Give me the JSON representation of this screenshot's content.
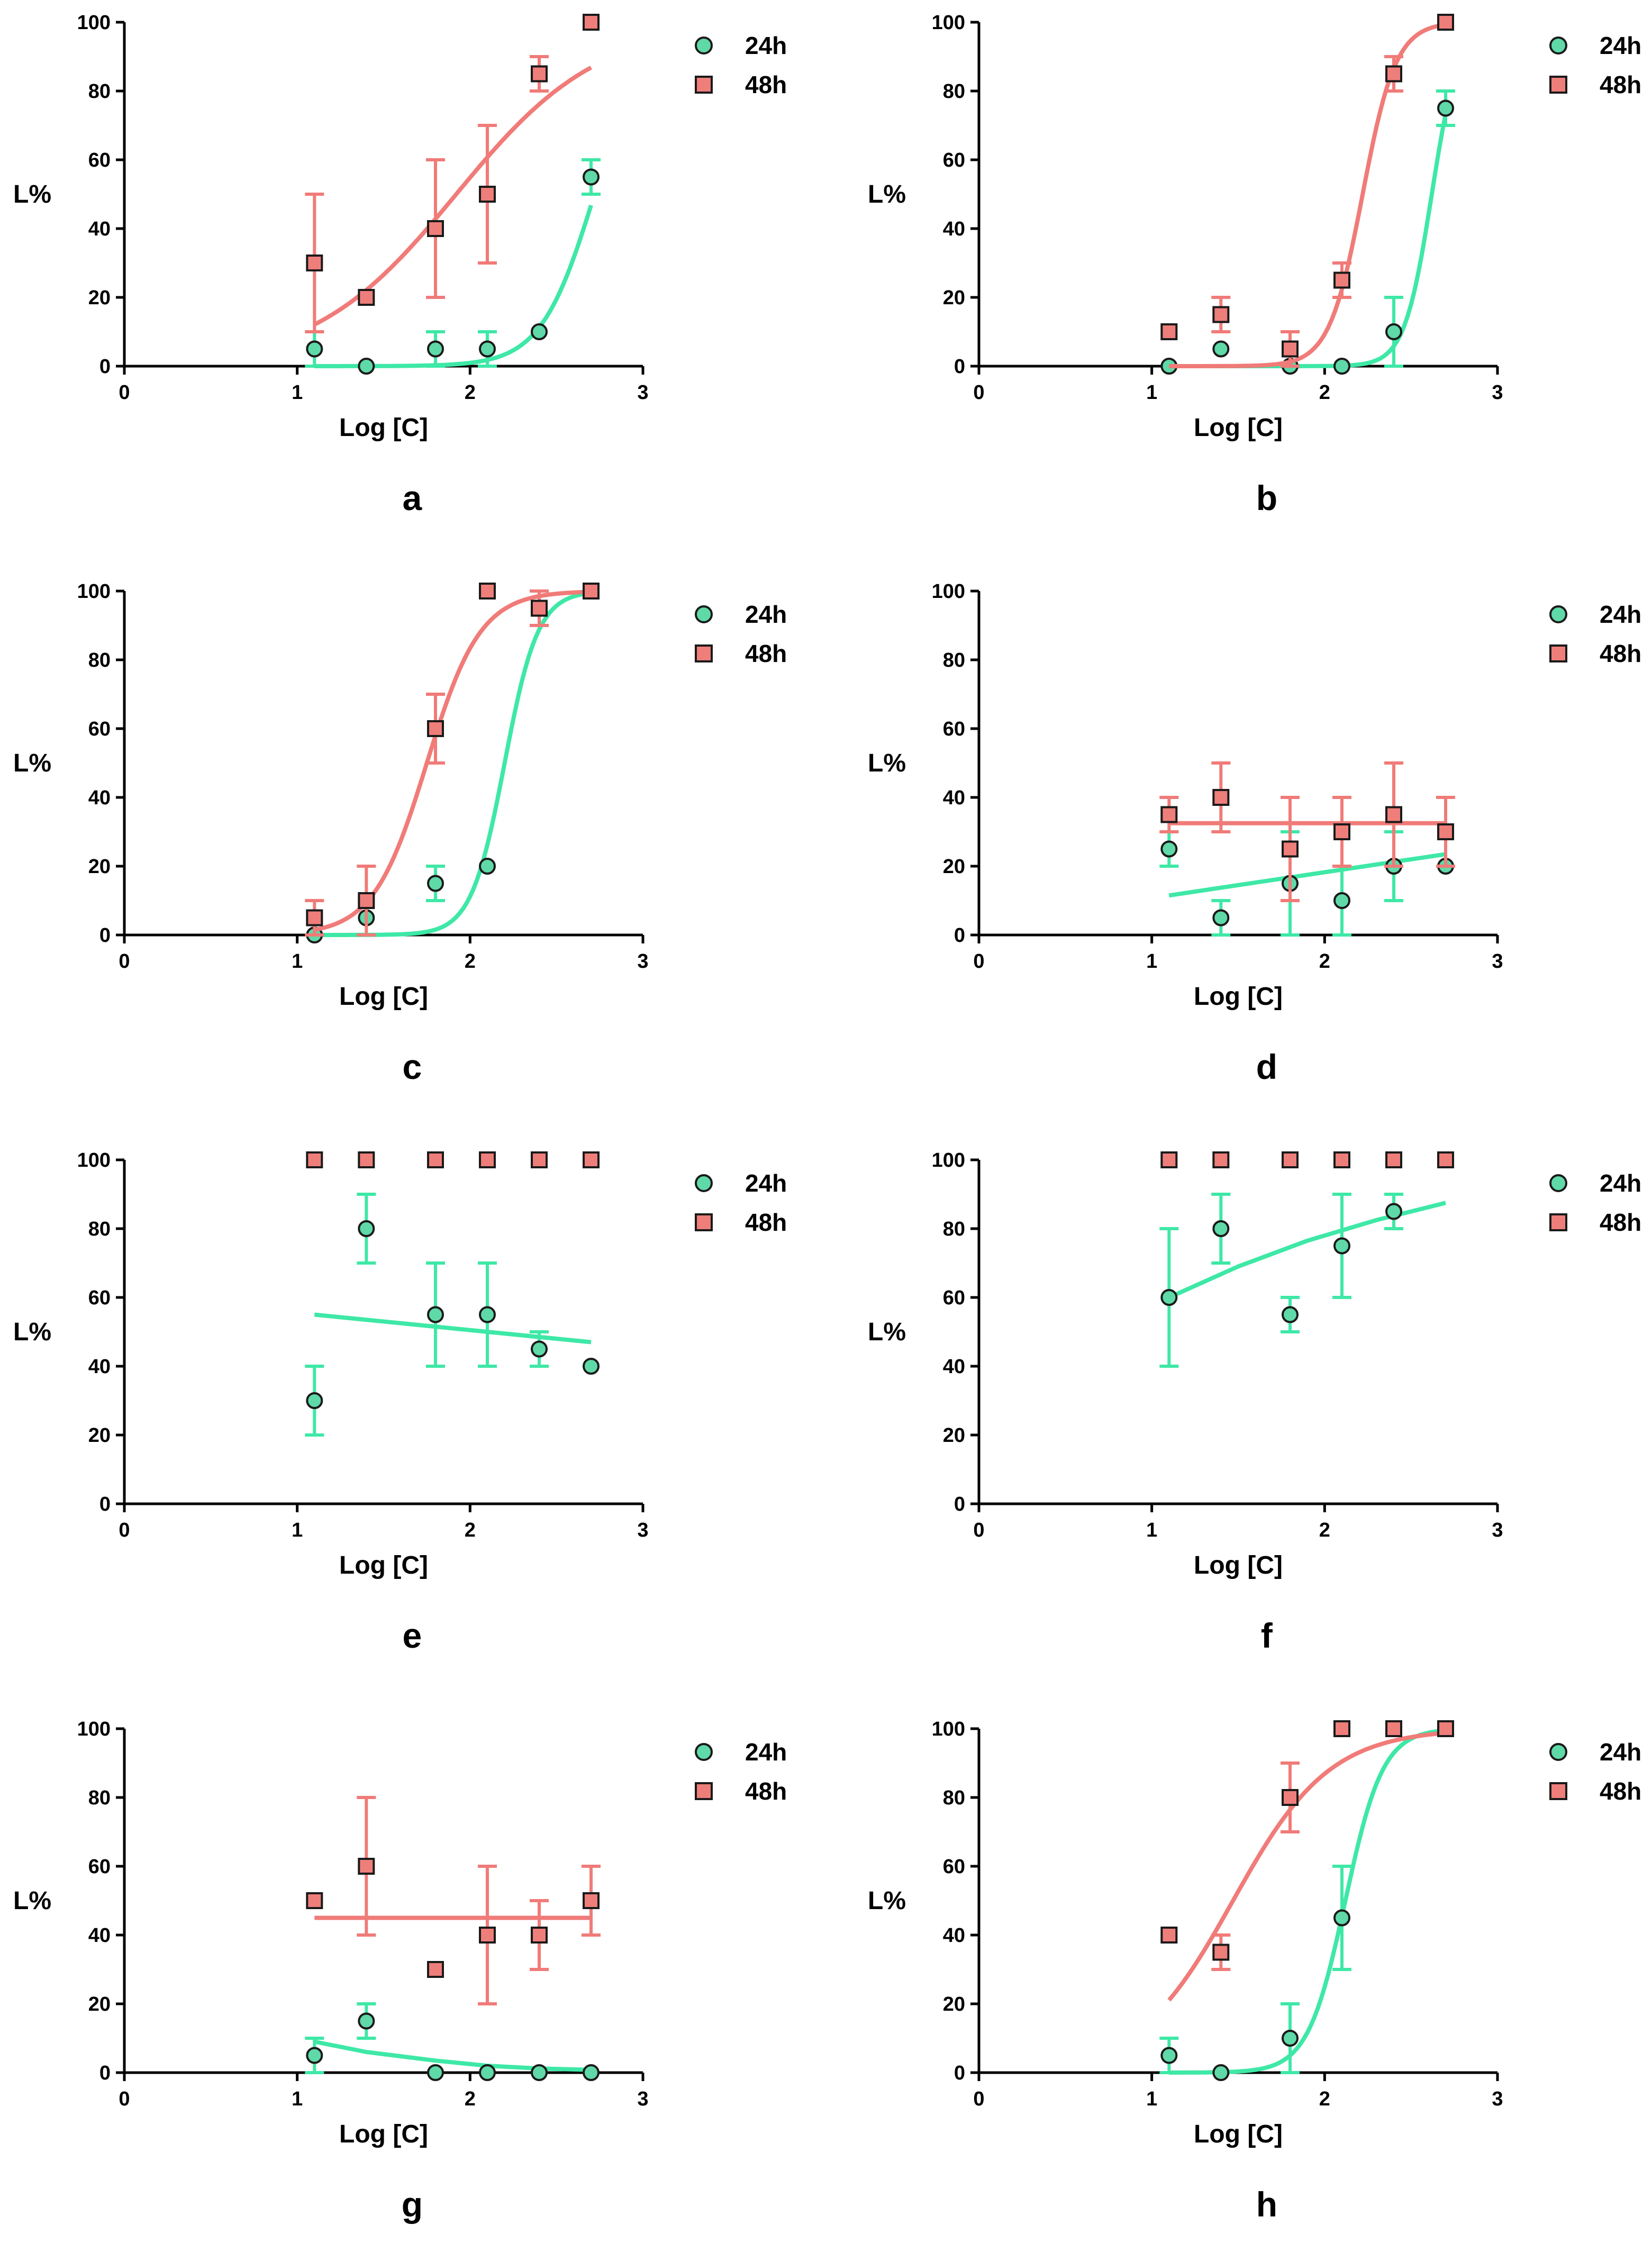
{
  "colors": {
    "s24": "#3ee8a6",
    "s48": "#f07b78",
    "marker_s24": "#5fd9a8",
    "marker_s48": "#ee7e7a",
    "axis": "#000000"
  },
  "chart_data": [
    {
      "panel": "a",
      "type": "scatter",
      "xlabel": "Log [C]",
      "ylabel": "L%",
      "xlim": [
        0,
        3
      ],
      "ylim": [
        0,
        100
      ],
      "xticks": [
        "0",
        "1",
        "2",
        "3"
      ],
      "yticks": [
        "0",
        "20",
        "40",
        "60",
        "80",
        "100"
      ],
      "legend": [
        "24h",
        "48h"
      ],
      "series": [
        {
          "name": "24h",
          "x": [
            1.1,
            1.4,
            1.8,
            2.1,
            2.4,
            2.7
          ],
          "y": [
            5,
            0,
            5,
            5,
            10,
            55
          ],
          "err": [
            5,
            0,
            5,
            5,
            0,
            5
          ],
          "fit": {
            "kind": "sigmoid",
            "bottom": 0,
            "top": 100,
            "ec50": 2.72,
            "hill": 2.8
          }
        },
        {
          "name": "48h",
          "x": [
            1.1,
            1.4,
            1.8,
            2.1,
            2.4,
            2.7
          ],
          "y": [
            30,
            20,
            40,
            50,
            85,
            100
          ],
          "err": [
            20,
            0,
            20,
            20,
            5,
            0
          ],
          "fit": {
            "kind": "sigmoid",
            "bottom": 0,
            "top": 100,
            "ec50": 1.92,
            "hill": 1.05
          }
        }
      ]
    },
    {
      "panel": "b",
      "type": "scatter",
      "xlabel": "Log [C]",
      "ylabel": "L%",
      "xlim": [
        0,
        3
      ],
      "ylim": [
        0,
        100
      ],
      "xticks": [
        "0",
        "1",
        "2",
        "3"
      ],
      "yticks": [
        "0",
        "20",
        "40",
        "60",
        "80",
        "100"
      ],
      "legend": [
        "24h",
        "48h"
      ],
      "series": [
        {
          "name": "24h",
          "x": [
            1.1,
            1.4,
            1.8,
            2.1,
            2.4,
            2.7
          ],
          "y": [
            0,
            5,
            0,
            0,
            10,
            75
          ],
          "err": [
            0,
            0,
            0,
            0,
            10,
            5
          ],
          "fit": {
            "kind": "sigmoid",
            "bottom": 0,
            "top": 100,
            "ec50": 2.62,
            "hill": 5.5
          }
        },
        {
          "name": "48h",
          "x": [
            1.1,
            1.4,
            1.8,
            2.1,
            2.4,
            2.7
          ],
          "y": [
            10,
            15,
            5,
            25,
            85,
            100
          ],
          "err": [
            0,
            5,
            5,
            5,
            5,
            0
          ],
          "fit": {
            "kind": "sigmoid",
            "bottom": 0,
            "top": 100,
            "ec50": 2.22,
            "hill": 4.5
          }
        }
      ]
    },
    {
      "panel": "c",
      "type": "scatter",
      "xlabel": "Log [C]",
      "ylabel": "L%",
      "xlim": [
        0,
        3
      ],
      "ylim": [
        0,
        100
      ],
      "xticks": [
        "0",
        "1",
        "2",
        "3"
      ],
      "yticks": [
        "0",
        "20",
        "40",
        "60",
        "80",
        "100"
      ],
      "legend": [
        "24h",
        "48h"
      ],
      "series": [
        {
          "name": "24h",
          "x": [
            1.1,
            1.4,
            1.8,
            2.1,
            2.4,
            2.7
          ],
          "y": [
            0,
            5,
            15,
            20,
            95,
            100
          ],
          "err": [
            0,
            0,
            5,
            0,
            5,
            0
          ],
          "fit": {
            "kind": "sigmoid",
            "bottom": 0,
            "top": 100,
            "ec50": 2.2,
            "hill": 4.5
          }
        },
        {
          "name": "48h",
          "x": [
            1.1,
            1.4,
            1.8,
            2.1,
            2.4,
            2.7
          ],
          "y": [
            5,
            10,
            60,
            100,
            95,
            100
          ],
          "err": [
            5,
            10,
            10,
            0,
            5,
            0
          ],
          "fit": {
            "kind": "sigmoid",
            "bottom": 0,
            "top": 100,
            "ec50": 1.75,
            "hill": 2.8
          }
        }
      ]
    },
    {
      "panel": "d",
      "type": "scatter",
      "xlabel": "Log [C]",
      "ylabel": "L%",
      "xlim": [
        0,
        3
      ],
      "ylim": [
        0,
        100
      ],
      "xticks": [
        "0",
        "1",
        "2",
        "3"
      ],
      "yticks": [
        "0",
        "20",
        "40",
        "60",
        "80",
        "100"
      ],
      "legend": [
        "24h",
        "48h"
      ],
      "series": [
        {
          "name": "24h",
          "x": [
            1.1,
            1.4,
            1.8,
            2.1,
            2.4,
            2.7
          ],
          "y": [
            25,
            5,
            15,
            10,
            20,
            20
          ],
          "err": [
            5,
            5,
            15,
            10,
            10,
            0
          ],
          "fit": {
            "kind": "linear",
            "x0": 1.1,
            "y0": 11.5,
            "x1": 2.7,
            "y1": 23.5
          }
        },
        {
          "name": "48h",
          "x": [
            1.1,
            1.4,
            1.8,
            2.1,
            2.4,
            2.7
          ],
          "y": [
            35,
            40,
            25,
            30,
            35,
            30
          ],
          "err": [
            5,
            10,
            15,
            10,
            15,
            10
          ],
          "fit": {
            "kind": "linear",
            "x0": 1.1,
            "y0": 32.5,
            "x1": 2.7,
            "y1": 32.5
          }
        }
      ]
    },
    {
      "panel": "e",
      "type": "scatter",
      "xlabel": "Log [C]",
      "ylabel": "L%",
      "xlim": [
        0,
        3
      ],
      "ylim": [
        0,
        100
      ],
      "xticks": [
        "0",
        "1",
        "2",
        "3"
      ],
      "yticks": [
        "0",
        "20",
        "40",
        "60",
        "80",
        "100"
      ],
      "legend": [
        "24h",
        "48h"
      ],
      "series": [
        {
          "name": "24h",
          "x": [
            1.1,
            1.4,
            1.8,
            2.1,
            2.4,
            2.7
          ],
          "y": [
            30,
            80,
            55,
            55,
            45,
            40
          ],
          "err": [
            10,
            10,
            15,
            15,
            5,
            0
          ],
          "fit": {
            "kind": "linear",
            "x0": 1.1,
            "y0": 55,
            "x1": 2.7,
            "y1": 47
          }
        },
        {
          "name": "48h",
          "x": [
            1.1,
            1.4,
            1.8,
            2.1,
            2.4,
            2.7
          ],
          "y": [
            100,
            100,
            100,
            100,
            100,
            100
          ],
          "err": [
            0,
            0,
            0,
            0,
            0,
            0
          ],
          "fit": null
        }
      ]
    },
    {
      "panel": "f",
      "type": "scatter",
      "xlabel": "Log [C]",
      "ylabel": "L%",
      "xlim": [
        0,
        3
      ],
      "ylim": [
        0,
        100
      ],
      "xticks": [
        "0",
        "1",
        "2",
        "3"
      ],
      "yticks": [
        "0",
        "20",
        "40",
        "60",
        "80",
        "100"
      ],
      "legend": [
        "24h",
        "48h"
      ],
      "series": [
        {
          "name": "24h",
          "x": [
            1.1,
            1.4,
            1.8,
            2.1,
            2.4
          ],
          "y": [
            60,
            80,
            55,
            75,
            85
          ],
          "err": [
            20,
            10,
            5,
            15,
            5
          ],
          "fit": {
            "kind": "points",
            "x": [
              1.1,
              1.5,
              1.9,
              2.3,
              2.7
            ],
            "y": [
              60,
              69,
              76.5,
              82.5,
              87.5
            ]
          }
        },
        {
          "name": "48h",
          "x": [
            1.1,
            1.4,
            1.8,
            2.1,
            2.4,
            2.7
          ],
          "y": [
            100,
            100,
            100,
            100,
            100,
            100
          ],
          "err": [
            0,
            0,
            0,
            0,
            0,
            0
          ],
          "fit": null
        }
      ]
    },
    {
      "panel": "g",
      "type": "scatter",
      "xlabel": "Log [C]",
      "ylabel": "L%",
      "xlim": [
        0,
        3
      ],
      "ylim": [
        0,
        100
      ],
      "xticks": [
        "0",
        "1",
        "2",
        "3"
      ],
      "yticks": [
        "0",
        "20",
        "40",
        "60",
        "80",
        "100"
      ],
      "legend": [
        "24h",
        "48h"
      ],
      "series": [
        {
          "name": "24h",
          "x": [
            1.1,
            1.4,
            1.8,
            2.1,
            2.4,
            2.7
          ],
          "y": [
            5,
            15,
            0,
            0,
            0,
            0
          ],
          "err": [
            5,
            5,
            0,
            0,
            0,
            0
          ],
          "fit": {
            "kind": "points",
            "x": [
              1.1,
              1.4,
              1.8,
              2.1,
              2.4,
              2.7
            ],
            "y": [
              9,
              6,
              3.5,
              2,
              1.2,
              0.8
            ]
          }
        },
        {
          "name": "48h",
          "x": [
            1.1,
            1.4,
            1.8,
            2.1,
            2.4,
            2.7
          ],
          "y": [
            50,
            60,
            30,
            40,
            40,
            50
          ],
          "err": [
            0,
            20,
            0,
            20,
            10,
            10
          ],
          "fit": {
            "kind": "linear",
            "x0": 1.1,
            "y0": 45,
            "x1": 2.7,
            "y1": 45
          }
        }
      ]
    },
    {
      "panel": "h",
      "type": "scatter",
      "xlabel": "Log [C]",
      "ylabel": "L%",
      "xlim": [
        0,
        3
      ],
      "ylim": [
        0,
        100
      ],
      "xticks": [
        "0",
        "1",
        "2",
        "3"
      ],
      "yticks": [
        "0",
        "20",
        "40",
        "60",
        "80",
        "100"
      ],
      "legend": [
        "24h",
        "48h"
      ],
      "series": [
        {
          "name": "24h",
          "x": [
            1.1,
            1.4,
            1.8,
            2.1,
            2.4,
            2.7
          ],
          "y": [
            5,
            0,
            10,
            45,
            100,
            100
          ],
          "err": [
            5,
            0,
            10,
            15,
            0,
            0
          ],
          "fit": {
            "kind": "sigmoid",
            "bottom": 0,
            "top": 100,
            "ec50": 2.12,
            "hill": 4.0
          }
        },
        {
          "name": "48h",
          "x": [
            1.1,
            1.4,
            1.8,
            2.1,
            2.4,
            2.7
          ],
          "y": [
            40,
            35,
            80,
            100,
            100,
            100
          ],
          "err": [
            0,
            5,
            10,
            0,
            0,
            0
          ],
          "fit": {
            "kind": "sigmoid",
            "bottom": 0,
            "top": 100,
            "ec50": 1.47,
            "hill": 1.55
          }
        }
      ]
    }
  ]
}
